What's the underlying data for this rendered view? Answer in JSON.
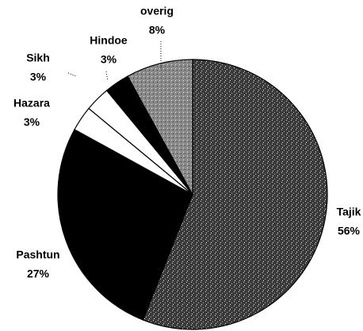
{
  "chart_data": {
    "type": "pie",
    "categories": [
      "Tajik",
      "Pashtun",
      "Hazara",
      "Sikh",
      "Hindoe",
      "overig"
    ],
    "values": [
      56,
      27,
      3,
      3,
      3,
      8
    ],
    "value_labels": [
      "56%",
      "27%",
      "3%",
      "3%",
      "3%",
      "8%"
    ],
    "colors": [
      "#4d4d4d",
      "#000000",
      "#ffffff",
      "#ffffff",
      "#000000",
      "#9a9a9a"
    ]
  }
}
